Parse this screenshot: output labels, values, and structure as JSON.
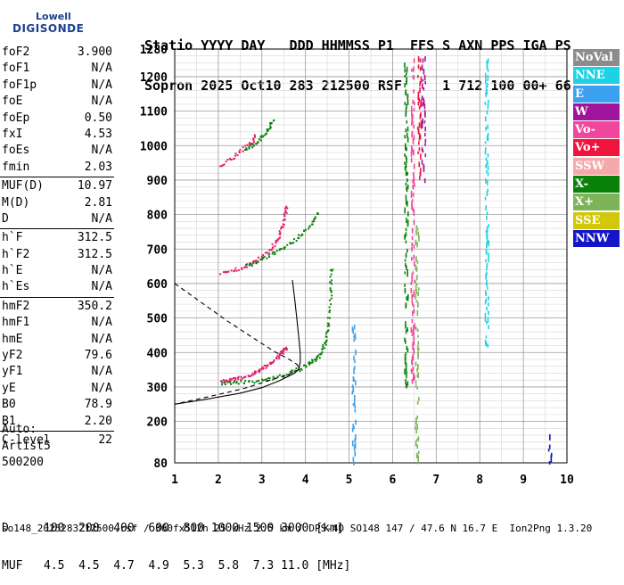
{
  "logo": {
    "line1": "Lowell",
    "line2": "DIGISONDE"
  },
  "header": {
    "line1": "Statio YYYY DAY   DDD HHMMSS P1  FFS S AXN PPS IGA PS",
    "line2": "Sopron 2025 Oct10 283 212500 RSF     1 712 100 00+ 66"
  },
  "params": [
    {
      "key": "foF2",
      "value": "3.900"
    },
    {
      "key": "foF1",
      "value": "N/A"
    },
    {
      "key": "foF1p",
      "value": "N/A"
    },
    {
      "key": "foE",
      "value": "N/A"
    },
    {
      "key": "foEp",
      "value": "0.50"
    },
    {
      "key": "fxI",
      "value": "4.53"
    },
    {
      "key": "foEs",
      "value": "N/A"
    },
    {
      "key": "fmin",
      "value": "2.03"
    },
    {
      "key": "MUF(D)",
      "value": "10.97"
    },
    {
      "key": "M(D)",
      "value": "2.81"
    },
    {
      "key": "D",
      "value": "N/A"
    },
    {
      "key": "h`F",
      "value": "312.5"
    },
    {
      "key": "h`F2",
      "value": "312.5"
    },
    {
      "key": "h`E",
      "value": "N/A"
    },
    {
      "key": "h`Es",
      "value": "N/A"
    },
    {
      "key": "hmF2",
      "value": "350.2"
    },
    {
      "key": "hmF1",
      "value": "N/A"
    },
    {
      "key": "hmE",
      "value": "N/A"
    },
    {
      "key": "yF2",
      "value": "79.6"
    },
    {
      "key": "yF1",
      "value": "N/A"
    },
    {
      "key": "yE",
      "value": "N/A"
    },
    {
      "key": "B0",
      "value": "78.9"
    },
    {
      "key": "B1",
      "value": "2.20"
    },
    {
      "key": "C-level",
      "value": "22"
    }
  ],
  "auto_block": {
    "line1": "Auto:",
    "line2": "Artist5",
    "line3": "500200"
  },
  "muf_table": {
    "line1": "D     100  200  400  600  800 1000 1500 3000 [km]",
    "line2": "MUF   4.5  4.5  4.7  4.9  5.3  5.8  7.3 11.0 [MHz]"
  },
  "footer": "so148_2025283212500.rsf / 360fx512h 25 kHz 2.5 km / DPS-4D SO148 147 / 47.6 N 16.7 E  Ion2Png 1.3.20",
  "legend": [
    {
      "label": "NoVal",
      "color": "#8c8c8c"
    },
    {
      "label": "NNE",
      "color": "#1ed2e6"
    },
    {
      "label": "E",
      "color": "#3ca0f0"
    },
    {
      "label": "W",
      "color": "#a0149b"
    },
    {
      "label": "Vo-",
      "color": "#f0469b"
    },
    {
      "label": "Vo+",
      "color": "#f0143c"
    },
    {
      "label": "SSW",
      "color": "#f5aaaa"
    },
    {
      "label": "X-",
      "color": "#0a820a"
    },
    {
      "label": "X+",
      "color": "#7db45a"
    },
    {
      "label": "SSE",
      "color": "#d2c80a"
    },
    {
      "label": "NNW",
      "color": "#1414c8"
    }
  ],
  "chart_data": {
    "type": "scatter",
    "x_ticks": [
      "1",
      "2",
      "3",
      "4",
      "5",
      "6",
      "7",
      "8",
      "9",
      "10"
    ],
    "y_ticks": [
      "80",
      "200",
      "300",
      "400",
      "500",
      "600",
      "700",
      "800",
      "900",
      "1000",
      "1100",
      "1200",
      "1280"
    ],
    "xlim": [
      1,
      10
    ],
    "ylim": [
      80,
      1280
    ],
    "grid": true,
    "traces": [
      {
        "name": "O-trace F2",
        "color": "#e0206e",
        "points": [
          [
            2.05,
            318
          ],
          [
            2.3,
            322
          ],
          [
            2.6,
            332
          ],
          [
            2.9,
            348
          ],
          [
            3.1,
            362
          ],
          [
            3.3,
            382
          ],
          [
            3.45,
            402
          ],
          [
            3.55,
            418
          ]
        ]
      },
      {
        "name": "X-trace F2",
        "color": "#0a820a",
        "points": [
          [
            2.05,
            312
          ],
          [
            2.5,
            316
          ],
          [
            3.0,
            322
          ],
          [
            3.4,
            332
          ],
          [
            3.8,
            352
          ],
          [
            4.1,
            372
          ],
          [
            4.3,
            392
          ],
          [
            4.45,
            432
          ],
          [
            4.52,
            492
          ],
          [
            4.56,
            582
          ],
          [
            4.58,
            652
          ]
        ]
      },
      {
        "name": "O 2nd hop",
        "color": "#e0206e",
        "points": [
          [
            2.05,
            632
          ],
          [
            2.5,
            646
          ],
          [
            2.9,
            672
          ],
          [
            3.2,
            702
          ],
          [
            3.4,
            742
          ],
          [
            3.5,
            792
          ],
          [
            3.55,
            832
          ]
        ]
      },
      {
        "name": "X 2nd hop",
        "color": "#0a820a",
        "points": [
          [
            2.6,
            652
          ],
          [
            3.0,
            672
          ],
          [
            3.4,
            702
          ],
          [
            3.8,
            732
          ],
          [
            4.1,
            772
          ],
          [
            4.3,
            812
          ]
        ]
      },
      {
        "name": "O 3rd hop",
        "color": "#e0206e",
        "points": [
          [
            2.05,
            945
          ],
          [
            2.4,
            975
          ],
          [
            2.7,
            1005
          ],
          [
            2.85,
            1030
          ]
        ]
      },
      {
        "name": "X 3rd hop",
        "color": "#0a820a",
        "points": [
          [
            2.6,
            992
          ],
          [
            2.9,
            1012
          ],
          [
            3.1,
            1042
          ],
          [
            3.25,
            1082
          ]
        ]
      }
    ],
    "profile_solid": [
      [
        1.0,
        250
      ],
      [
        1.8,
        266
      ],
      [
        2.5,
        282
      ],
      [
        3.0,
        298
      ],
      [
        3.4,
        318
      ],
      [
        3.75,
        340
      ],
      [
        3.85,
        352
      ],
      [
        3.88,
        372
      ],
      [
        3.88,
        400
      ],
      [
        3.85,
        440
      ],
      [
        3.8,
        500
      ],
      [
        3.75,
        560
      ],
      [
        3.7,
        610
      ]
    ],
    "profile_dashed": [
      [
        1.0,
        600
      ],
      [
        1.6,
        546
      ],
      [
        2.2,
        492
      ],
      [
        2.8,
        442
      ],
      [
        3.3,
        402
      ],
      [
        3.6,
        382
      ],
      [
        3.8,
        366
      ],
      [
        3.88,
        352
      ],
      [
        3.6,
        336
      ],
      [
        3.1,
        316
      ],
      [
        2.6,
        296
      ],
      [
        2.0,
        278
      ],
      [
        1.5,
        264
      ],
      [
        1.0,
        250
      ]
    ],
    "vertical_bands": [
      {
        "x": 6.3,
        "y0": 300,
        "y1": 1250,
        "color": "#0a820a"
      },
      {
        "x": 6.45,
        "y0": 300,
        "y1": 1250,
        "color": "#f0469b"
      },
      {
        "x": 6.6,
        "y0": 900,
        "y1": 1260,
        "color": "#f0143c"
      },
      {
        "x": 6.7,
        "y0": 900,
        "y1": 1260,
        "color": "#a0149b"
      },
      {
        "x": 6.55,
        "y0": 80,
        "y1": 780,
        "color": "#7db45a"
      },
      {
        "x": 8.15,
        "y0": 420,
        "y1": 1260,
        "color": "#1ed2e6"
      },
      {
        "x": 9.6,
        "y0": 80,
        "y1": 160,
        "color": "#1414c8"
      },
      {
        "x": 5.1,
        "y0": 80,
        "y1": 480,
        "color": "#3ca0f0"
      }
    ]
  }
}
